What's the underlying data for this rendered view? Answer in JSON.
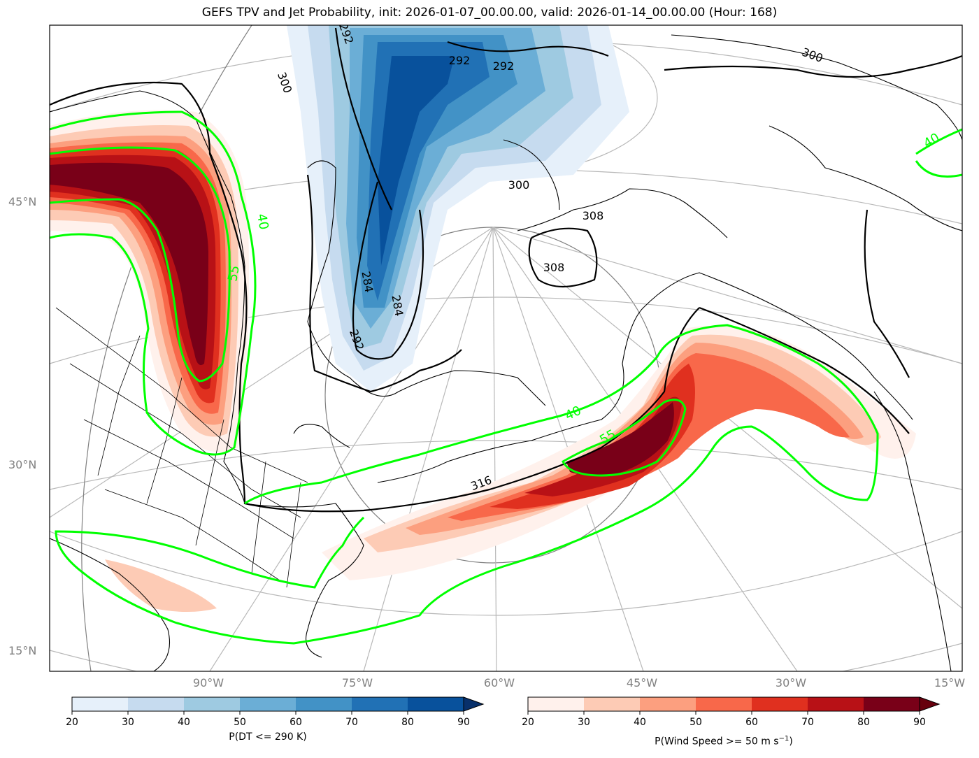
{
  "title": "GEFS TPV and Jet Probability, init: 2026-01-07_00.00.00, valid: 2026-01-14_00.00.00 (Hour: 168)",
  "map": {
    "lat_labels": [
      "45°N",
      "30°N",
      "15°N"
    ],
    "lon_labels": [
      "90°W",
      "75°W",
      "60°W",
      "45°W",
      "30°W",
      "15°W"
    ],
    "contour_labels_black": [
      "292",
      "292",
      "292",
      "300",
      "300",
      "300",
      "308",
      "308",
      "316",
      "284",
      "284",
      "292"
    ],
    "contour_labels_green": [
      "40",
      "55",
      "40",
      "55",
      "40"
    ]
  },
  "colorbars": [
    {
      "name": "tpv",
      "label": "P(DT <= 290 K)",
      "ticks": [
        "20",
        "30",
        "40",
        "50",
        "60",
        "70",
        "80",
        "90"
      ],
      "colors": [
        "#e6f0fa",
        "#c6dbef",
        "#9ecae1",
        "#6baed6",
        "#4292c6",
        "#2171b5",
        "#08519c"
      ],
      "extend_color": "#08306b"
    },
    {
      "name": "jet",
      "label_prefix": "P(Wind Speed >= 50 m s",
      "label_exp": "−1",
      "label_suffix": ")",
      "ticks": [
        "20",
        "30",
        "40",
        "50",
        "60",
        "70",
        "80",
        "90"
      ],
      "colors": [
        "#fff1ec",
        "#fdcbb5",
        "#fc9f7f",
        "#f8684a",
        "#e0301f",
        "#b81116",
        "#790018"
      ],
      "extend_color": "#67000d"
    }
  ]
}
